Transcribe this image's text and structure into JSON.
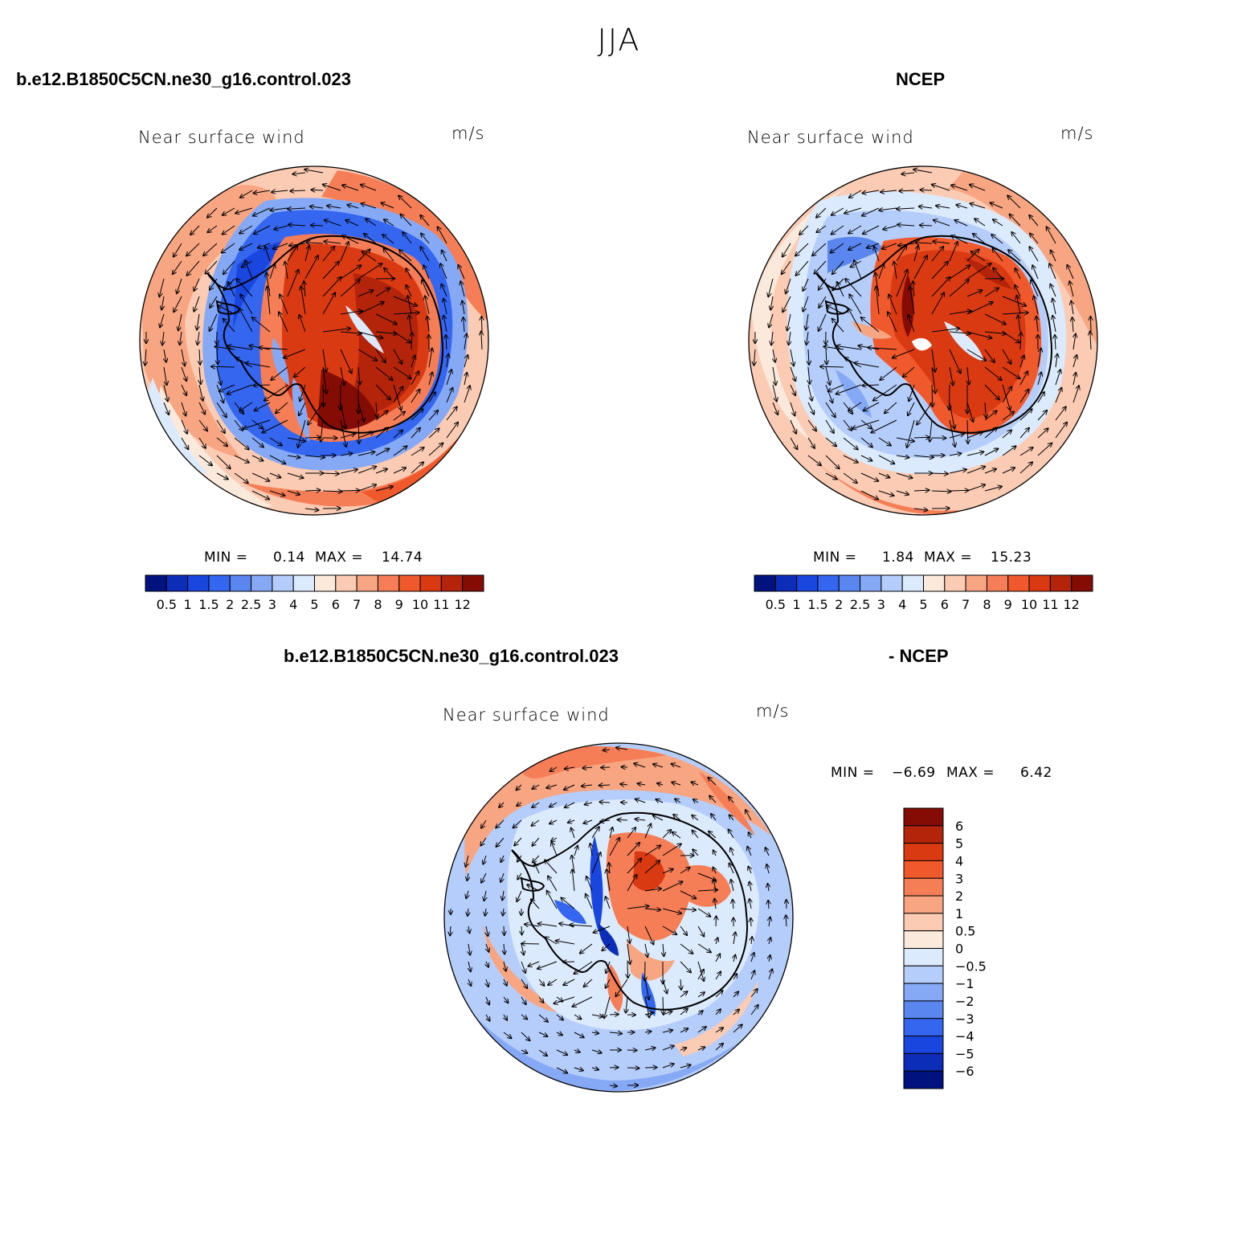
{
  "page": {
    "title": "JJA",
    "top_left_label": "b.e12.B1850C5CN.ne30_g16.control.023",
    "top_right_label": "NCEP",
    "bottom_left_label": "b.e12.B1850C5CN.ne30_g16.control.023",
    "bottom_right_label": "- NCEP"
  },
  "colors": {
    "full_palette": [
      "#00127d",
      "#0b2db8",
      "#1a46e0",
      "#3566f0",
      "#5a86f0",
      "#86a9f5",
      "#b5cdfa",
      "#dbeafc",
      "#fbe9dc",
      "#fccbb3",
      "#f8a582",
      "#f57e57",
      "#f0592c",
      "#d93a12",
      "#b3240b",
      "#850c05"
    ],
    "diff_palette": [
      "#00127d",
      "#0b2db8",
      "#1a46e0",
      "#3566f0",
      "#5a86f0",
      "#86a9f5",
      "#b5cdfa",
      "#dbeafc",
      "#fbe9dc",
      "#fccbb3",
      "#f8a582",
      "#f57e57",
      "#f0592c",
      "#d93a12",
      "#b3240b",
      "#850c05"
    ]
  },
  "chart_data": [
    {
      "type": "heatmap",
      "projection": "south-polar-stereographic",
      "title": "Near surface wind",
      "units": "m/s",
      "series": "b.e12.B1850C5CN.ne30_g16.control.023",
      "min_label": "MIN =",
      "min_value": "0.14",
      "max_label": "MAX =",
      "max_value": "14.74",
      "contour_levels": [
        "0.5",
        "1",
        "1.5",
        "2",
        "2.5",
        "3",
        "4",
        "5",
        "6",
        "7",
        "8",
        "9",
        "10",
        "11",
        "12"
      ],
      "vectors": "wind arrows"
    },
    {
      "type": "heatmap",
      "projection": "south-polar-stereographic",
      "title": "Near surface wind",
      "units": "m/s",
      "series": "NCEP",
      "min_label": "MIN =",
      "min_value": "1.84",
      "max_label": "MAX =",
      "max_value": "15.23",
      "contour_levels": [
        "0.5",
        "1",
        "1.5",
        "2",
        "2.5",
        "3",
        "4",
        "5",
        "6",
        "7",
        "8",
        "9",
        "10",
        "11",
        "12"
      ],
      "vectors": "wind arrows"
    },
    {
      "type": "heatmap",
      "projection": "south-polar-stereographic",
      "title": "Near surface wind",
      "units": "m/s",
      "series": "b.e12.B1850C5CN.ne30_g16.control.023 - NCEP",
      "min_label": "MIN =",
      "min_value": "−6.69",
      "max_label": "MAX =",
      "max_value": "6.42",
      "contour_levels": [
        "6",
        "5",
        "4",
        "3",
        "2",
        "1",
        "0.5",
        "0",
        "−0.5",
        "−1",
        "−2",
        "−3",
        "−4",
        "−5",
        "−6"
      ],
      "vectors": "wind difference arrows"
    }
  ]
}
